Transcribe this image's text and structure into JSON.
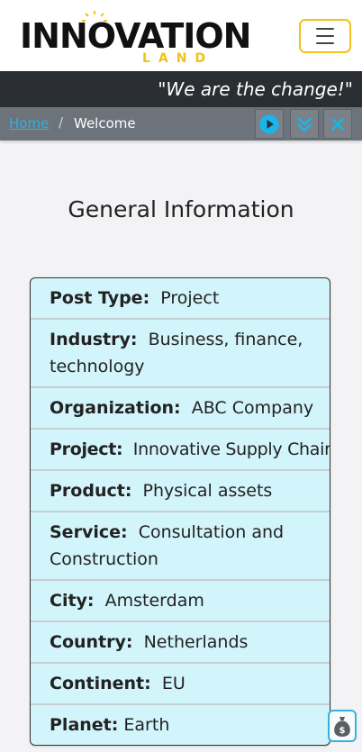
{
  "header": {
    "logo_main": "INNOVATION",
    "logo_sub": "LAND",
    "menu_icon": "hamburger-icon"
  },
  "tagline": "\"We are the change!\"",
  "breadcrumb": {
    "home": "Home",
    "separator": "/",
    "current": "Welcome"
  },
  "controls": {
    "play_icon": "play-icon",
    "expand_icon": "double-chevron-down-icon",
    "close_icon": "close-icon"
  },
  "main": {
    "title": "General Information",
    "info": [
      {
        "key": "Post Type:",
        "value": "Project"
      },
      {
        "key": "Industry:",
        "value": "Business, finance, technology"
      },
      {
        "key": "Organization:",
        "value": "ABC Company"
      },
      {
        "key": "Project:",
        "value": "Innovative Supply Chain"
      },
      {
        "key": "Product:",
        "value": "Physical assets"
      },
      {
        "key": "Service:",
        "value": "Consultation and Construction"
      },
      {
        "key": "City:",
        "value": "Amsterdam"
      },
      {
        "key": "Country:",
        "value": "Netherlands"
      },
      {
        "key": "Continent:",
        "value": "EU"
      },
      {
        "key": "Planet:",
        "value": "Earth"
      }
    ]
  },
  "floating": {
    "bag_icon": "money-bag-icon"
  },
  "colors": {
    "accent_yellow": "#f2c218",
    "accent_cyan": "#2ab3e8",
    "tagline_bg": "#2a2d31",
    "crumb_bg": "#6c737a",
    "card_bg": "#d2f4fb"
  }
}
